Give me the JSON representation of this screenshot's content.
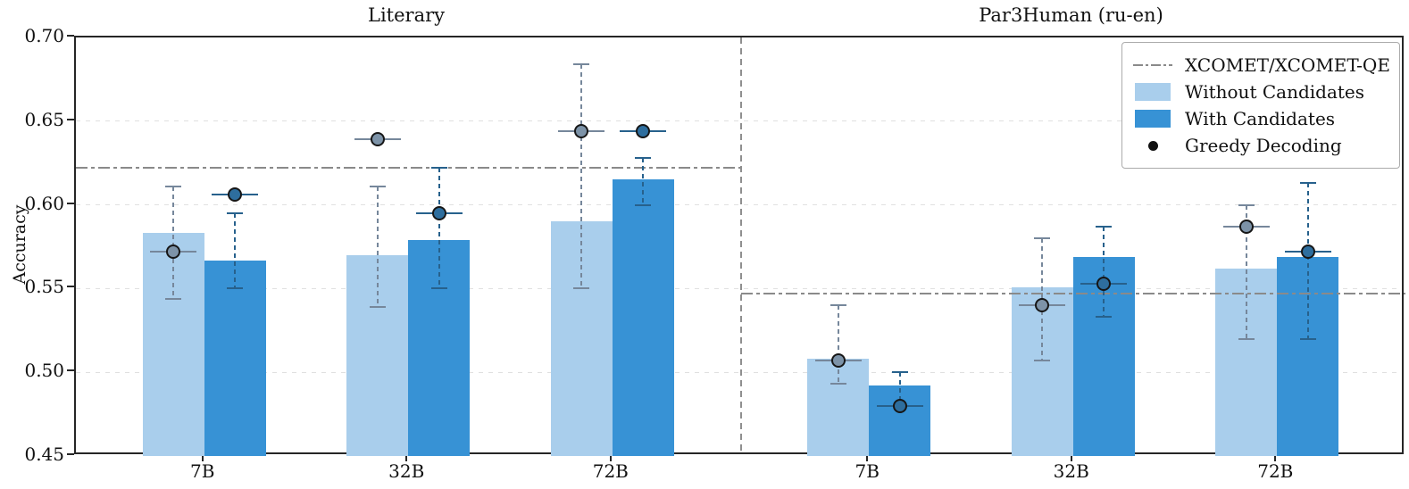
{
  "chart_data": {
    "type": "bar",
    "ylabel": "Accuracy",
    "ylim": [
      0.45,
      0.7
    ],
    "yticks": [
      "0.45",
      "0.50",
      "0.55",
      "0.60",
      "0.65",
      "0.70"
    ],
    "grid": "horizontal-dashed",
    "legend_position": "upper-right",
    "categories": [
      "7B",
      "32B",
      "72B"
    ],
    "panels": [
      {
        "title": "Literary",
        "xcomet_line": 0.622,
        "categories": [
          "7B",
          "32B",
          "72B"
        ],
        "series": [
          {
            "name": "Without Candidates",
            "bars": [
              0.583,
              0.57,
              0.59
            ],
            "greedy_dots": [
              0.572,
              0.639,
              0.644
            ],
            "err_low": [
              0.544,
              0.539,
              0.55
            ],
            "err_high": [
              0.611,
              0.611,
              0.684
            ]
          },
          {
            "name": "With Candidates",
            "bars": [
              0.567,
              0.579,
              0.615
            ],
            "greedy_dots": [
              0.606,
              0.595,
              0.644
            ],
            "err_low": [
              0.55,
              0.55,
              0.6
            ],
            "err_high": [
              0.595,
              0.622,
              0.628
            ]
          }
        ]
      },
      {
        "title": "Par3Human (ru-en)",
        "xcomet_line": 0.547,
        "categories": [
          "7B",
          "32B",
          "72B"
        ],
        "series": [
          {
            "name": "Without Candidates",
            "bars": [
              0.508,
              0.551,
              0.562
            ],
            "greedy_dots": [
              0.507,
              0.54,
              0.587
            ],
            "err_low": [
              0.493,
              0.507,
              0.52
            ],
            "err_high": [
              0.54,
              0.58,
              0.6
            ]
          },
          {
            "name": "With Candidates",
            "bars": [
              0.492,
              0.569,
              0.569
            ],
            "greedy_dots": [
              0.48,
              0.553,
              0.572
            ],
            "err_low": [
              0.48,
              0.533,
              0.52
            ],
            "err_high": [
              0.5,
              0.587,
              0.613
            ]
          }
        ]
      }
    ],
    "legend": [
      {
        "label": "XCOMET/XCOMET-QE",
        "type": "dashdot-line"
      },
      {
        "label": "Without Candidates",
        "type": "patch",
        "color_key": "without"
      },
      {
        "label": "With Candidates",
        "type": "patch",
        "color_key": "with"
      },
      {
        "label": "Greedy Decoding",
        "type": "marker"
      }
    ],
    "colors": {
      "without_bar": "#A9CEEC",
      "with_bar": "#3792D5",
      "without_err": "#76879B",
      "with_err": "#27618C",
      "without_dot": "#7D93A8",
      "with_dot": "#2E6E9E",
      "dot_edge": "#161616",
      "xcomet_line": "#8a8a8a",
      "gridline": "#e0e0e0",
      "separator": "#8f8f8f"
    }
  }
}
